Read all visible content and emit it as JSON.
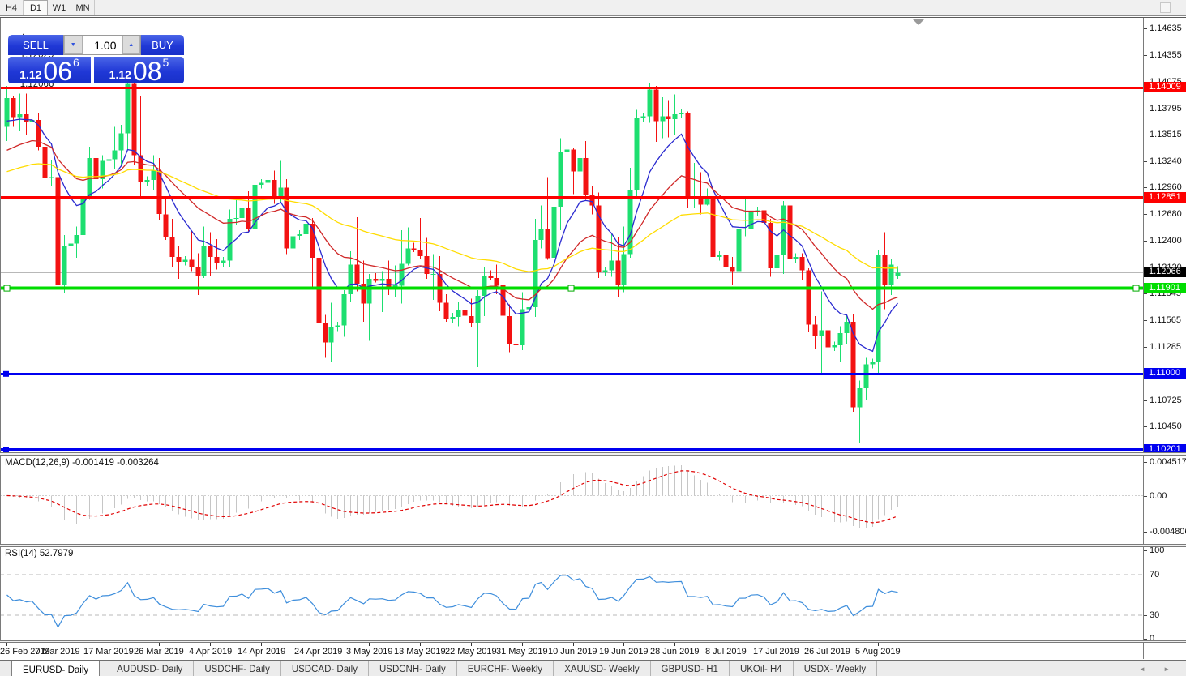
{
  "toolbar": {
    "timeframes": [
      "H4",
      "D1",
      "W1",
      "MN"
    ],
    "active": "D1"
  },
  "chart": {
    "marker": "▲",
    "title": "EURUSD-,Daily",
    "ohlc": {
      "open": "1.12029",
      "high": "1.12131",
      "low": "1.12001",
      "close": "1.12066"
    }
  },
  "trade_panel": {
    "sell_label": "SELL",
    "buy_label": "BUY",
    "volume": "1.00",
    "spin_down": "▼",
    "spin_up": "▲",
    "sell_price": {
      "prefix": "1.12",
      "big": "06",
      "sup": "6"
    },
    "buy_price": {
      "prefix": "1.12",
      "big": "08",
      "sup": "5"
    }
  },
  "indicators": {
    "macd": {
      "label": "MACD(12,26,9)",
      "values_text": "-0.001419 -0.003264"
    },
    "rsi": {
      "label": "RSI(14)",
      "value_text": "52.7979"
    }
  },
  "tabs": {
    "items": [
      "EURUSD- Daily",
      "AUDUSD- Daily",
      "USDCHF- Daily",
      "USDCAD- Daily",
      "USDCNH- Daily",
      "EURCHF- Weekly",
      "XAUUSD- Weekly",
      "GBPUSD- H1",
      "UKOil- H4",
      "USDX- Weekly"
    ],
    "active_index": 0,
    "arrows": "◄ ►"
  },
  "chart_data": {
    "type": "candlestick",
    "symbol": "EURUSD-",
    "timeframe": "Daily",
    "title": "EURUSD-,Daily  1.12029 1.12131 1.12001 1.12066",
    "ylim": [
      1.099,
      1.1475
    ],
    "grid": false,
    "colors": {
      "bull": "#1ddf70",
      "bear": "#f31212",
      "bid_line": "#b8b8b8",
      "bid_flag_bg": "#000000",
      "ma_fast": "#2a2ad0",
      "ma_mid": "#d02828",
      "ma_slow": "#ffdc00",
      "macd_hist": "#c6c6c6",
      "macd_signal": "#e00000",
      "rsi_line": "#3e8edc",
      "level_dotted": "#b8b8b8",
      "hline_red": "#fe0000",
      "hline_green": "#00dd00",
      "hline_blue": "#0000f0"
    },
    "price_ticks": [
      "1.14635",
      "1.14355",
      "1.14075",
      "1.13795",
      "1.13515",
      "1.13240",
      "1.12960",
      "1.12680",
      "1.12400",
      "1.12120",
      "1.11845",
      "1.11565",
      "1.11285",
      "1.11000",
      "1.10725",
      "1.10450",
      "1.10170"
    ],
    "hlines": [
      {
        "price": 1.14009,
        "label": "1.14009",
        "color": "#fe0000",
        "width": 3,
        "handles": "none"
      },
      {
        "price": 1.12851,
        "label": "1.12851",
        "color": "#fe0000",
        "width": 4,
        "handles": "none"
      },
      {
        "price": 1.11901,
        "label": "1.11901",
        "color": "#00dd00",
        "width": 4,
        "handles": "full"
      },
      {
        "price": 1.11,
        "label": "1.11000",
        "color": "#0000f0",
        "width": 3,
        "handles": "left"
      },
      {
        "price": 1.10201,
        "label": "1.10201",
        "color": "#0000f0",
        "width": 4,
        "handles": "left"
      }
    ],
    "bid": {
      "price": 1.12066,
      "label": "1.12066"
    },
    "moving_averages": [
      {
        "type": "ema",
        "period": 9,
        "color": "#2a2ad0",
        "seed": 1.136
      },
      {
        "type": "ema",
        "period": 22,
        "color": "#d02828",
        "seed": 1.133
      },
      {
        "type": "ema",
        "period": 55,
        "color": "#ffdc00",
        "seed": 1.131
      }
    ],
    "macd": {
      "params": [
        12,
        26,
        9
      ],
      "current": [
        -0.001419,
        -0.003264
      ],
      "axis": [
        "0.004517",
        "0.00",
        "-0.004806"
      ]
    },
    "rsi": {
      "period": 14,
      "current": 52.7979,
      "axis": [
        "100",
        "70",
        "30",
        "0"
      ],
      "levels": [
        70,
        30
      ]
    },
    "date_labels": [
      [
        "26 Feb 2019",
        0
      ],
      [
        "7 Mar 2019",
        8
      ],
      [
        "17 Mar 2019",
        16
      ],
      [
        "26 Mar 2019",
        24
      ],
      [
        "4 Apr 2019",
        32
      ],
      [
        "14 Apr 2019",
        40
      ],
      [
        "24 Apr 2019",
        49
      ],
      [
        "3 May 2019",
        57
      ],
      [
        "13 May 2019",
        65
      ],
      [
        "22 May 2019",
        73
      ],
      [
        "31 May 2019",
        81
      ],
      [
        "10 Jun 2019",
        89
      ],
      [
        "19 Jun 2019",
        97
      ],
      [
        "28 Jun 2019",
        105
      ],
      [
        "8 Jul 2019",
        113
      ],
      [
        "17 Jul 2019",
        121
      ],
      [
        "26 Jul 2019",
        129
      ],
      [
        "5 Aug 2019",
        137
      ]
    ],
    "candles": [
      [
        1.136,
        1.1403,
        1.1345,
        1.139
      ],
      [
        1.139,
        1.1392,
        1.136,
        1.137
      ],
      [
        1.137,
        1.1395,
        1.1355,
        1.1373
      ],
      [
        1.1373,
        1.1395,
        1.1352,
        1.1365
      ],
      [
        1.1365,
        1.1371,
        1.1361,
        1.1367
      ],
      [
        1.1367,
        1.1374,
        1.1335,
        1.1339
      ],
      [
        1.1339,
        1.1344,
        1.1298,
        1.1306
      ],
      [
        1.1306,
        1.1325,
        1.1298,
        1.1307
      ],
      [
        1.1307,
        1.131,
        1.1176,
        1.1194
      ],
      [
        1.1194,
        1.1246,
        1.1185,
        1.1235
      ],
      [
        1.1235,
        1.1241,
        1.1231,
        1.1237
      ],
      [
        1.1237,
        1.1255,
        1.1222,
        1.1246
      ],
      [
        1.1246,
        1.1297,
        1.124,
        1.1287
      ],
      [
        1.1287,
        1.1339,
        1.1283,
        1.1327
      ],
      [
        1.1327,
        1.134,
        1.1294,
        1.1305
      ],
      [
        1.1305,
        1.133,
        1.1295,
        1.1324
      ],
      [
        1.1324,
        1.133,
        1.132,
        1.1326
      ],
      [
        1.1326,
        1.136,
        1.1316,
        1.1335
      ],
      [
        1.1335,
        1.1362,
        1.132,
        1.1353
      ],
      [
        1.1353,
        1.1412,
        1.1336,
        1.1405
      ],
      [
        1.1405,
        1.1412,
        1.132,
        1.133
      ],
      [
        1.133,
        1.1392,
        1.1287,
        1.1302
      ],
      [
        1.1302,
        1.1308,
        1.1298,
        1.1304
      ],
      [
        1.1304,
        1.133,
        1.1293,
        1.1314
      ],
      [
        1.1314,
        1.1327,
        1.1262,
        1.1268
      ],
      [
        1.1268,
        1.1287,
        1.1241,
        1.1244
      ],
      [
        1.1244,
        1.1263,
        1.1213,
        1.1223
      ],
      [
        1.1223,
        1.1235,
        1.12,
        1.1218
      ],
      [
        1.1218,
        1.1224,
        1.1214,
        1.122
      ],
      [
        1.122,
        1.125,
        1.1208,
        1.1213
      ],
      [
        1.1213,
        1.1227,
        1.1183,
        1.1203
      ],
      [
        1.1203,
        1.1255,
        1.1201,
        1.1234
      ],
      [
        1.1234,
        1.1249,
        1.1203,
        1.1223
      ],
      [
        1.1223,
        1.1242,
        1.121,
        1.1217
      ],
      [
        1.1217,
        1.1223,
        1.1213,
        1.1219
      ],
      [
        1.1219,
        1.1273,
        1.1213,
        1.1263
      ],
      [
        1.1263,
        1.1285,
        1.1257,
        1.1264
      ],
      [
        1.1264,
        1.1289,
        1.1229,
        1.1274
      ],
      [
        1.1274,
        1.1292,
        1.125,
        1.1253
      ],
      [
        1.1253,
        1.1323,
        1.1252,
        1.1299
      ],
      [
        1.1299,
        1.1305,
        1.1295,
        1.1301
      ],
      [
        1.1301,
        1.1317,
        1.1295,
        1.1304
      ],
      [
        1.1304,
        1.1314,
        1.1279,
        1.1284
      ],
      [
        1.1284,
        1.1324,
        1.128,
        1.1296
      ],
      [
        1.1296,
        1.1305,
        1.1226,
        1.1232
      ],
      [
        1.1232,
        1.1252,
        1.1224,
        1.1245
      ],
      [
        1.1245,
        1.1251,
        1.1241,
        1.1247
      ],
      [
        1.1247,
        1.1262,
        1.1235,
        1.1258
      ],
      [
        1.1258,
        1.1264,
        1.1192,
        1.1222
      ],
      [
        1.1222,
        1.123,
        1.1141,
        1.1154
      ],
      [
        1.1154,
        1.1162,
        1.1117,
        1.1133
      ],
      [
        1.1133,
        1.1175,
        1.1112,
        1.1149
      ],
      [
        1.1149,
        1.1155,
        1.1145,
        1.1151
      ],
      [
        1.1151,
        1.1188,
        1.1139,
        1.1184
      ],
      [
        1.1184,
        1.1229,
        1.1176,
        1.1215
      ],
      [
        1.1215,
        1.1265,
        1.1187,
        1.1195
      ],
      [
        1.1195,
        1.1219,
        1.1155,
        1.1174
      ],
      [
        1.1174,
        1.1205,
        1.1135,
        1.12
      ],
      [
        1.12,
        1.1206,
        1.1196,
        1.1198
      ],
      [
        1.1198,
        1.1208,
        1.1165,
        1.12
      ],
      [
        1.12,
        1.1219,
        1.1183,
        1.1191
      ],
      [
        1.1191,
        1.1214,
        1.1181,
        1.1193
      ],
      [
        1.1193,
        1.1251,
        1.1174,
        1.1216
      ],
      [
        1.1216,
        1.1254,
        1.1214,
        1.1232
      ],
      [
        1.1232,
        1.1238,
        1.1228,
        1.123
      ],
      [
        1.123,
        1.1264,
        1.1221,
        1.1224
      ],
      [
        1.1224,
        1.1243,
        1.12,
        1.1205
      ],
      [
        1.1205,
        1.1226,
        1.1178,
        1.1205
      ],
      [
        1.1205,
        1.1224,
        1.1166,
        1.1175
      ],
      [
        1.1175,
        1.1184,
        1.1155,
        1.1158
      ],
      [
        1.1158,
        1.1164,
        1.1154,
        1.116
      ],
      [
        1.116,
        1.1176,
        1.115,
        1.1167
      ],
      [
        1.1167,
        1.1188,
        1.1142,
        1.1161
      ],
      [
        1.1161,
        1.1179,
        1.1149,
        1.1153
      ],
      [
        1.1153,
        1.1188,
        1.1107,
        1.1182
      ],
      [
        1.1182,
        1.1213,
        1.1161,
        1.1203
      ],
      [
        1.1203,
        1.1209,
        1.1199,
        1.1201
      ],
      [
        1.1201,
        1.1215,
        1.1184,
        1.1193
      ],
      [
        1.1193,
        1.12,
        1.1159,
        1.1161
      ],
      [
        1.1161,
        1.1173,
        1.1123,
        1.1131
      ],
      [
        1.1131,
        1.1143,
        1.1116,
        1.113
      ],
      [
        1.113,
        1.1186,
        1.1125,
        1.1168
      ],
      [
        1.1168,
        1.1174,
        1.1164,
        1.117
      ],
      [
        1.117,
        1.1263,
        1.116,
        1.1241
      ],
      [
        1.1241,
        1.1277,
        1.1232,
        1.1253
      ],
      [
        1.1253,
        1.1307,
        1.122,
        1.1222
      ],
      [
        1.1222,
        1.1309,
        1.1219,
        1.1276
      ],
      [
        1.1276,
        1.1348,
        1.1251,
        1.1334
      ],
      [
        1.1334,
        1.134,
        1.133,
        1.1336
      ],
      [
        1.1336,
        1.1338,
        1.1289,
        1.1313
      ],
      [
        1.1313,
        1.1338,
        1.1301,
        1.1327
      ],
      [
        1.1327,
        1.1345,
        1.1283,
        1.1288
      ],
      [
        1.1288,
        1.1298,
        1.1268,
        1.1277
      ],
      [
        1.1277,
        1.1291,
        1.1201,
        1.1207
      ],
      [
        1.1207,
        1.1213,
        1.1203,
        1.1209
      ],
      [
        1.1209,
        1.1247,
        1.1202,
        1.1219
      ],
      [
        1.1219,
        1.1244,
        1.1181,
        1.1193
      ],
      [
        1.1193,
        1.1255,
        1.1186,
        1.1226
      ],
      [
        1.1226,
        1.1317,
        1.1222,
        1.1294
      ],
      [
        1.1294,
        1.1378,
        1.1285,
        1.1369
      ],
      [
        1.1369,
        1.1375,
        1.1365,
        1.1371
      ],
      [
        1.1371,
        1.1406,
        1.1364,
        1.1399
      ],
      [
        1.1399,
        1.1403,
        1.1344,
        1.1366
      ],
      [
        1.1366,
        1.1391,
        1.1348,
        1.1371
      ],
      [
        1.1371,
        1.1388,
        1.1349,
        1.1368
      ],
      [
        1.1368,
        1.1394,
        1.1351,
        1.1373
      ],
      [
        1.1373,
        1.1379,
        1.1369,
        1.1375
      ],
      [
        1.1375,
        1.1376,
        1.1275,
        1.1285
      ],
      [
        1.1285,
        1.1322,
        1.1275,
        1.1285
      ],
      [
        1.1285,
        1.1312,
        1.1268,
        1.1278
      ],
      [
        1.1278,
        1.1295,
        1.1277,
        1.1285
      ],
      [
        1.1285,
        1.1288,
        1.1207,
        1.1223
      ],
      [
        1.1223,
        1.1229,
        1.1219,
        1.1225
      ],
      [
        1.1225,
        1.1234,
        1.1206,
        1.1213
      ],
      [
        1.1213,
        1.1223,
        1.1193,
        1.1208
      ],
      [
        1.1208,
        1.1264,
        1.1202,
        1.1252
      ],
      [
        1.1252,
        1.1285,
        1.1245,
        1.1253
      ],
      [
        1.1253,
        1.1275,
        1.1239,
        1.127
      ],
      [
        1.127,
        1.1276,
        1.1266,
        1.1272
      ],
      [
        1.1272,
        1.1284,
        1.1253,
        1.1259
      ],
      [
        1.1259,
        1.1263,
        1.1202,
        1.1211
      ],
      [
        1.1211,
        1.1242,
        1.1209,
        1.1225
      ],
      [
        1.1225,
        1.1282,
        1.1205,
        1.1277
      ],
      [
        1.1277,
        1.1283,
        1.1213,
        1.1221
      ],
      [
        1.1221,
        1.1227,
        1.1217,
        1.1223
      ],
      [
        1.1223,
        1.1227,
        1.1199,
        1.1209
      ],
      [
        1.1209,
        1.1211,
        1.1144,
        1.1152
      ],
      [
        1.1152,
        1.1161,
        1.1126,
        1.114
      ],
      [
        1.114,
        1.1187,
        1.1101,
        1.1146
      ],
      [
        1.1146,
        1.1152,
        1.1112,
        1.1128
      ],
      [
        1.1128,
        1.1134,
        1.1124,
        1.113
      ],
      [
        1.113,
        1.115,
        1.1112,
        1.1143
      ],
      [
        1.1143,
        1.1162,
        1.1131,
        1.1155
      ],
      [
        1.1155,
        1.1163,
        1.106,
        1.1065
      ],
      [
        1.1065,
        1.1093,
        1.1027,
        1.1085
      ],
      [
        1.1085,
        1.1117,
        1.1072,
        1.111
      ],
      [
        1.111,
        1.1116,
        1.1106,
        1.1112
      ],
      [
        1.1112,
        1.123,
        1.1101,
        1.1225
      ],
      [
        1.1225,
        1.1249,
        1.1168,
        1.1194
      ],
      [
        1.1194,
        1.1221,
        1.1183,
        1.1215
      ],
      [
        1.12029,
        1.12131,
        1.12001,
        1.12066
      ]
    ]
  }
}
